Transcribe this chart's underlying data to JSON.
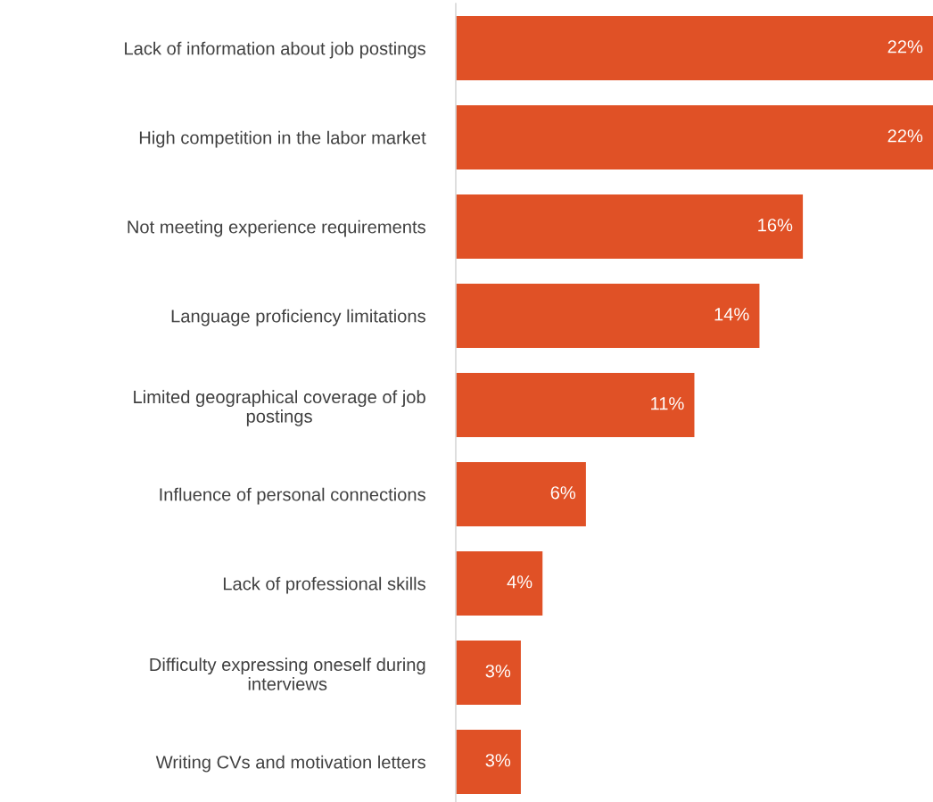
{
  "chart_data": {
    "type": "bar",
    "orientation": "horizontal",
    "categories": [
      "Lack of information about job postings",
      "High competition in the labor market",
      "Not meeting experience requirements",
      "Language proficiency limitations",
      "Limited geographical coverage of job\npostings",
      "Influence of personal connections",
      "Lack of professional skills",
      "Difficulty expressing oneself during\ninterviews",
      "Writing CVs and motivation letters"
    ],
    "values": [
      22,
      22,
      16,
      14,
      11,
      6,
      4,
      3,
      3
    ],
    "value_labels": [
      "22%",
      "22%",
      "16%",
      "14%",
      "11%",
      "6%",
      "4%",
      "3%",
      "3%"
    ],
    "color": "#e05126",
    "xlim": [
      0,
      22
    ],
    "tick_labels": "y",
    "grid": false,
    "legend": false
  }
}
